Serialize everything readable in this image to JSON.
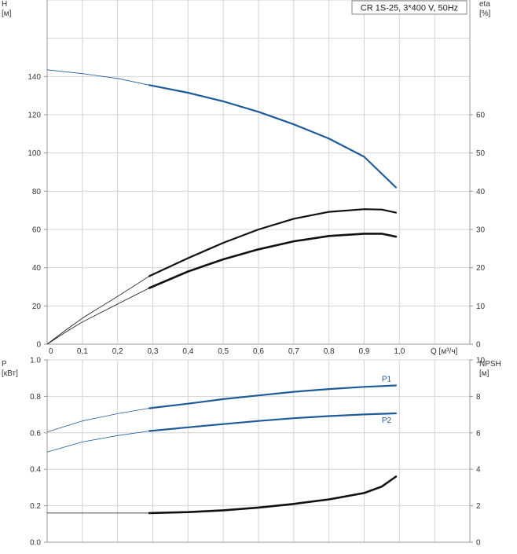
{
  "colors": {
    "background": "#ffffff",
    "grid": "#d4d4d4",
    "axis": "#999999",
    "curve_blue": "#1f5b99",
    "curve_black": "#111111"
  },
  "legend": {
    "text": "CR 1S-25, 3*400 V, 50Hz"
  },
  "chart_data": [
    {
      "type": "line",
      "name": "head_and_efficiency",
      "xlabel": "Q [м³/ч]",
      "x_ticks": [
        "0",
        "0,1",
        "0,2",
        "0,3",
        "0,4",
        "0,5",
        "0,6",
        "0,7",
        "0,8",
        "0,9",
        "1,0"
      ],
      "xlim": [
        0,
        1.2
      ],
      "left_axis": {
        "title_line1": "H",
        "title_line2": "[м]",
        "ticks": [
          "0",
          "20",
          "40",
          "60",
          "80",
          "100",
          "120",
          "140"
        ],
        "ylim": [
          0,
          180
        ]
      },
      "right_axis": {
        "title_line1": "eta",
        "title_line2": "[%]",
        "ticks": [
          "0",
          "10",
          "20",
          "30",
          "40",
          "50",
          "60"
        ],
        "ylim": [
          0,
          90
        ]
      },
      "grid": true,
      "series": [
        {
          "axis": "left",
          "color": "#1f5b99",
          "x": [
            0,
            0.1,
            0.2,
            0.29,
            0.4,
            0.5,
            0.6,
            0.7,
            0.8,
            0.9,
            0.99
          ],
          "y": [
            143.5,
            141.5,
            139,
            135.5,
            131.5,
            127,
            121.5,
            115,
            107.5,
            98,
            82
          ],
          "thin_until": 0.29
        },
        {
          "axis": "right",
          "color": "#111111",
          "x": [
            0,
            0.05,
            0.1,
            0.2,
            0.29,
            0.4,
            0.5,
            0.6,
            0.7,
            0.8,
            0.9,
            0.95,
            0.99
          ],
          "y": [
            0,
            3.5,
            6.8,
            12.5,
            17.8,
            22.5,
            26.5,
            30,
            32.8,
            34.6,
            35.3,
            35.2,
            34.4
          ],
          "thin_until": 0.29
        },
        {
          "axis": "right",
          "color": "#111111",
          "x": [
            0,
            0.05,
            0.1,
            0.2,
            0.29,
            0.4,
            0.5,
            0.6,
            0.7,
            0.8,
            0.9,
            0.95,
            0.99
          ],
          "y": [
            0,
            3,
            5.8,
            10.5,
            14.7,
            19,
            22.2,
            24.8,
            26.9,
            28.3,
            28.9,
            28.9,
            28.1
          ],
          "thin_until": 0.29,
          "bold": true
        }
      ]
    },
    {
      "type": "line",
      "name": "power_and_npsh",
      "x_ticks": [],
      "xlim": [
        0,
        1.2
      ],
      "left_axis": {
        "title_line1": "P",
        "title_line2": "[кВт]",
        "ticks": [
          "0.0",
          "0.2",
          "0.4",
          "0.6",
          "0.8",
          "1.0"
        ],
        "ylim": [
          0,
          1.0
        ]
      },
      "right_axis": {
        "title_line1": "NPSH",
        "title_line2": "[м]",
        "ticks": [
          "0",
          "2",
          "4",
          "6",
          "8",
          "10"
        ],
        "ylim": [
          0,
          10
        ]
      },
      "grid": true,
      "series": [
        {
          "name": "P1",
          "axis": "left",
          "color": "#1f5b99",
          "x": [
            0,
            0.1,
            0.2,
            0.29,
            0.4,
            0.5,
            0.6,
            0.7,
            0.8,
            0.9,
            0.99
          ],
          "y": [
            0.605,
            0.665,
            0.705,
            0.735,
            0.76,
            0.785,
            0.805,
            0.825,
            0.84,
            0.852,
            0.86
          ],
          "thin_until": 0.29
        },
        {
          "name": "P2",
          "axis": "left",
          "color": "#1f5b99",
          "x": [
            0,
            0.1,
            0.2,
            0.29,
            0.4,
            0.5,
            0.6,
            0.7,
            0.8,
            0.9,
            0.99
          ],
          "y": [
            0.495,
            0.55,
            0.585,
            0.61,
            0.63,
            0.648,
            0.665,
            0.68,
            0.692,
            0.701,
            0.707
          ],
          "thin_until": 0.29
        },
        {
          "axis": "right",
          "color": "#111111",
          "x": [
            0,
            0.1,
            0.2,
            0.29,
            0.4,
            0.5,
            0.6,
            0.7,
            0.8,
            0.9,
            0.95,
            0.99
          ],
          "y": [
            1.6,
            1.6,
            1.6,
            1.6,
            1.65,
            1.75,
            1.9,
            2.1,
            2.35,
            2.7,
            3.05,
            3.6
          ],
          "thin_until": 0.29,
          "bold": true
        }
      ]
    }
  ]
}
